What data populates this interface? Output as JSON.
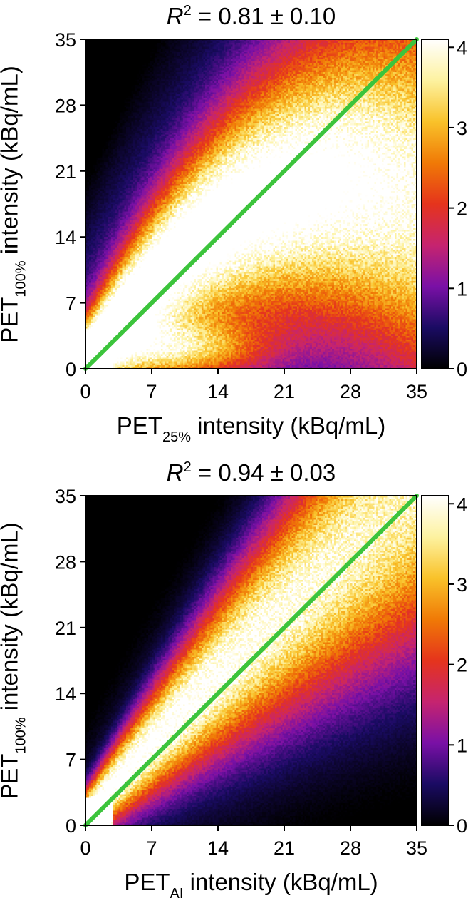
{
  "colormap_stops": [
    "#000000",
    "#1a0b63",
    "#7a10a6",
    "#c6246f",
    "#e5341c",
    "#f07a06",
    "#f9c22a",
    "#fdf2a0",
    "#ffffff"
  ],
  "line_color": "#3cc43c",
  "chart_data": [
    {
      "type": "heatmap",
      "title_prefix": "R",
      "title_sup": "2",
      "title_rest": " = 0.81 ± 0.10",
      "x_label_main": "PET",
      "x_label_sub": "25%",
      "x_label_rest": " intensity (kBq/mL)",
      "y_label_main": "PET",
      "y_label_sub": "100%",
      "y_label_rest": " intensity (kBq/mL)",
      "xlim": [
        0,
        35
      ],
      "ylim": [
        0,
        35
      ],
      "x_ticks": [
        0,
        7,
        14,
        21,
        28,
        35
      ],
      "y_ticks": [
        0,
        7,
        14,
        21,
        28,
        35
      ],
      "colorbar_range": [
        0,
        4.1
      ],
      "colorbar_ticks": [
        0,
        1,
        2,
        3,
        4
      ],
      "identity_line": [
        [
          0,
          0
        ],
        [
          35,
          35
        ]
      ],
      "density": {
        "ridge_a": 0.6,
        "ridge_b": 1.45,
        "ridge_c": -0.028,
        "ridge_width": 3.0,
        "blob_x": 10,
        "blob_y": 2,
        "blob_sx": 6,
        "blob_sy": 2.2,
        "blob_amp": 2.2,
        "spread": 0.75
      }
    },
    {
      "type": "heatmap",
      "title_prefix": "R",
      "title_sup": "2",
      "title_rest": " = 0.94 ± 0.03",
      "x_label_main": "PET",
      "x_label_sub": "AI",
      "x_label_rest": " intensity (kBq/mL)",
      "y_label_main": "PET",
      "y_label_sub": "100%",
      "y_label_rest": " intensity (kBq/mL)",
      "xlim": [
        0,
        35
      ],
      "ylim": [
        0,
        35
      ],
      "x_ticks": [
        0,
        7,
        14,
        21,
        28,
        35
      ],
      "y_ticks": [
        0,
        7,
        14,
        21,
        28,
        35
      ],
      "colorbar_range": [
        0,
        4.1
      ],
      "colorbar_ticks": [
        0,
        1,
        2,
        3,
        4
      ],
      "identity_line": [
        [
          0,
          0
        ],
        [
          35,
          35
        ]
      ],
      "density": {
        "ridge_a": 1.0,
        "ridge_b": 1.12,
        "ridge_c": -0.004,
        "ridge_width": 1.9,
        "blob_x": 0,
        "blob_y": 0,
        "blob_sx": 1,
        "blob_sy": 1,
        "blob_amp": 0,
        "spread": 0.35
      }
    }
  ]
}
